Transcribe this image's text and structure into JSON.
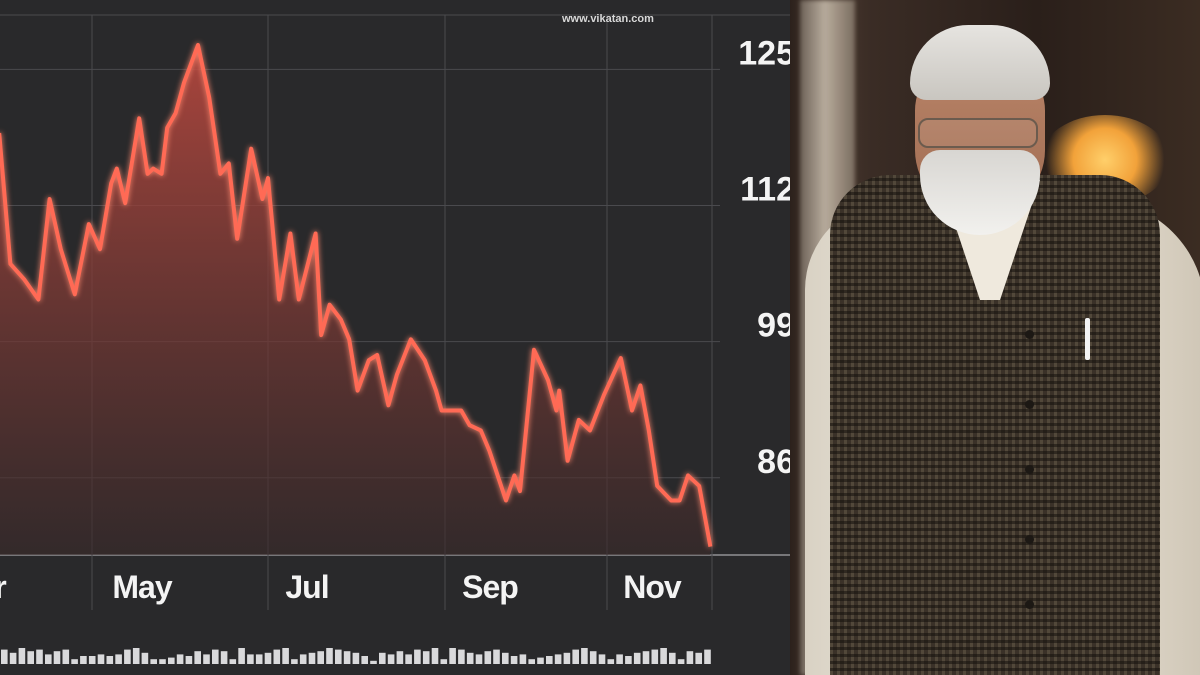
{
  "watermark": "www.vikatan.com",
  "colors": {
    "line": "#ff6a55",
    "fill": "#b8403a",
    "background": "#29292b",
    "grid": "#4a4a4e",
    "text": "#f4f4f4"
  },
  "photo": {
    "subject": "man in white kurta and checked vest",
    "icon": "person-photo"
  },
  "chart_data": {
    "type": "area",
    "title": "",
    "xlabel": "",
    "ylabel": "",
    "y_axis_position": "right",
    "ylim": [
      77,
      130
    ],
    "y_ticks": [
      125,
      112,
      99,
      86
    ],
    "x_ticks": [
      {
        "label": "r",
        "date": "04-01"
      },
      {
        "label": "May",
        "date": "05-01"
      },
      {
        "label": "Jul",
        "date": "07-01"
      },
      {
        "label": "Sep",
        "date": "09-01"
      },
      {
        "label": "Nov",
        "date": "11-01"
      }
    ],
    "grid": true,
    "series": [
      {
        "points": [
          [
            "03-11",
            117.3
          ],
          [
            "03-15",
            104.8
          ],
          [
            "03-20",
            103.3
          ],
          [
            "03-25",
            101.4
          ],
          [
            "03-29",
            111.0
          ],
          [
            "04-02",
            106.2
          ],
          [
            "04-07",
            101.9
          ],
          [
            "04-12",
            108.6
          ],
          [
            "04-16",
            106.2
          ],
          [
            "04-20",
            112.5
          ],
          [
            "04-22",
            113.9
          ],
          [
            "04-25",
            110.6
          ],
          [
            "04-30",
            118.7
          ],
          [
            "05-03",
            113.4
          ],
          [
            "05-05",
            113.9
          ],
          [
            "05-08",
            113.4
          ],
          [
            "05-10",
            117.8
          ],
          [
            "05-13",
            119.2
          ],
          [
            "05-16",
            122.1
          ],
          [
            "05-21",
            125.7
          ],
          [
            "05-25",
            120.7
          ],
          [
            "05-29",
            113.4
          ],
          [
            "06-01",
            114.4
          ],
          [
            "06-04",
            107.2
          ],
          [
            "06-09",
            115.8
          ],
          [
            "06-13",
            111.0
          ],
          [
            "06-15",
            113.0
          ],
          [
            "06-19",
            101.4
          ],
          [
            "06-23",
            107.7
          ],
          [
            "06-26",
            101.4
          ],
          [
            "07-02",
            107.7
          ],
          [
            "07-04",
            98.0
          ],
          [
            "07-07",
            100.9
          ],
          [
            "07-11",
            99.5
          ],
          [
            "07-14",
            97.6
          ],
          [
            "07-17",
            92.7
          ],
          [
            "07-21",
            95.6
          ],
          [
            "07-24",
            96.1
          ],
          [
            "07-28",
            91.3
          ],
          [
            "07-31",
            94.2
          ],
          [
            "08-05",
            97.6
          ],
          [
            "08-10",
            95.6
          ],
          [
            "08-14",
            92.7
          ],
          [
            "08-16",
            90.8
          ],
          [
            "08-23",
            90.8
          ],
          [
            "08-26",
            89.4
          ],
          [
            "08-30",
            88.9
          ],
          [
            "09-02",
            87.0
          ],
          [
            "09-08",
            82.2
          ],
          [
            "09-11",
            84.6
          ],
          [
            "09-13",
            83.1
          ],
          [
            "09-18",
            96.6
          ],
          [
            "09-23",
            93.7
          ],
          [
            "09-26",
            90.8
          ],
          [
            "09-27",
            92.7
          ],
          [
            "09-30",
            86.0
          ],
          [
            "10-04",
            89.9
          ],
          [
            "10-08",
            88.9
          ],
          [
            "10-13",
            92.3
          ],
          [
            "10-19",
            95.8
          ],
          [
            "10-23",
            90.8
          ],
          [
            "10-26",
            93.2
          ],
          [
            "10-29",
            88.9
          ],
          [
            "11-01",
            83.6
          ],
          [
            "11-06",
            82.2
          ],
          [
            "11-09",
            82.2
          ],
          [
            "11-12",
            84.6
          ],
          [
            "11-16",
            83.6
          ],
          [
            "11-20",
            77.8
          ]
        ]
      }
    ],
    "volume": [
      9,
      7,
      10,
      8,
      9,
      6,
      8,
      9,
      3,
      5,
      5,
      6,
      5,
      6,
      9,
      10,
      7,
      3,
      3,
      4,
      6,
      5,
      8,
      6,
      9,
      8,
      3,
      10,
      6,
      6,
      7,
      9,
      10,
      3,
      6,
      7,
      8,
      10,
      9,
      8,
      7,
      5,
      2,
      7,
      6,
      8,
      6,
      9,
      8,
      10,
      3,
      10,
      9,
      7,
      6,
      8,
      9,
      7,
      5,
      6,
      3,
      4,
      5,
      6,
      7,
      9,
      10,
      8,
      6,
      3,
      6,
      5,
      7,
      8,
      9,
      10,
      7,
      3,
      8,
      7,
      9
    ]
  }
}
